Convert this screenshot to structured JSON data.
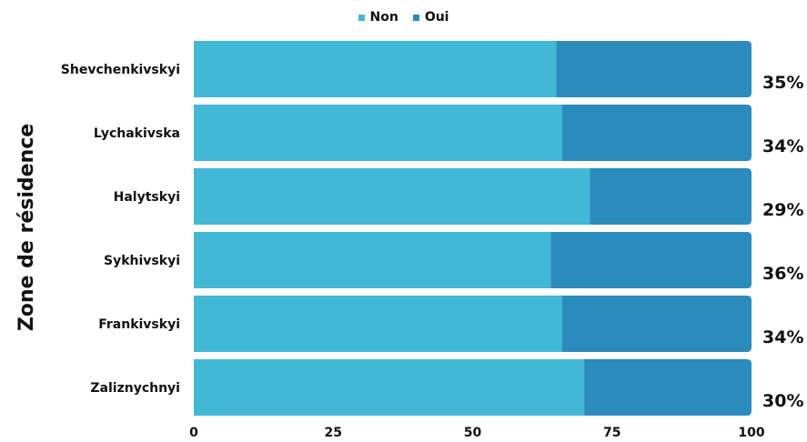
{
  "chart_data": {
    "type": "bar",
    "orientation": "horizontal",
    "stacked": true,
    "ylabel": "Zone de résidence",
    "xlabel": "",
    "xlim": [
      0,
      100
    ],
    "xticks": [
      "0",
      "25",
      "50",
      "75",
      "100"
    ],
    "categories": [
      "Shevchenkivskyi",
      "Lychakivska",
      "Halytskyi",
      "Sykhivskyi",
      "Frankivskyi",
      "Zaliznychnyi"
    ],
    "series": [
      {
        "name": "Non",
        "color": "#42b8d6",
        "values": [
          65,
          66,
          71,
          64,
          66,
          70
        ]
      },
      {
        "name": "Oui",
        "color": "#2b8bbd",
        "values": [
          35,
          34,
          29,
          36,
          34,
          30
        ]
      }
    ],
    "data_labels": [
      "35%",
      "34%",
      "29%",
      "36%",
      "34%",
      "30%"
    ],
    "legend_position": "top-center",
    "grid": false
  }
}
